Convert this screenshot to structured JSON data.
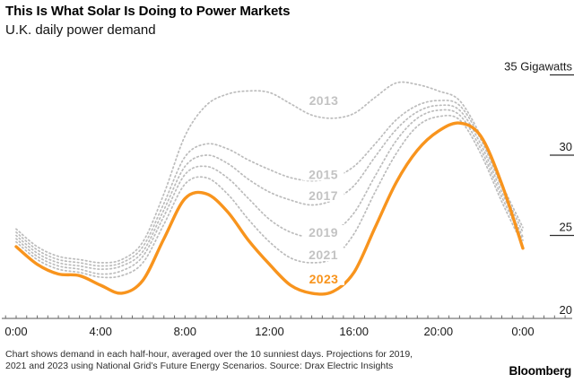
{
  "header": {
    "title": "This Is What Solar Is Doing to Power Markets",
    "subtitle": "U.K. daily power demand"
  },
  "chart_data": {
    "type": "line",
    "title": "This Is What Solar Is Doing to Power Markets",
    "subtitle": "U.K. daily power demand",
    "xlabel": "",
    "ylabel": "Gigawatts",
    "xlim_hours": [
      0,
      24
    ],
    "ylim": [
      19.6,
      35.6
    ],
    "grid": false,
    "legend_position": "inline-labels-on-lines",
    "x_ticks": [
      {
        "hour": 0,
        "label": "0:00"
      },
      {
        "hour": 4,
        "label": "4:00"
      },
      {
        "hour": 8,
        "label": "8:00"
      },
      {
        "hour": 12,
        "label": "12:00"
      },
      {
        "hour": 16,
        "label": "16:00"
      },
      {
        "hour": 20,
        "label": "20:00"
      },
      {
        "hour": 24,
        "label": "0:00"
      }
    ],
    "minor_tick_interval_hours": 0.5,
    "y_ticks": [
      {
        "value": 35,
        "label": "35 Gigawatts"
      },
      {
        "value": 30,
        "label": "30"
      },
      {
        "value": 25,
        "label": "25"
      },
      {
        "value": 20,
        "label": "20"
      }
    ],
    "hours": [
      0,
      1,
      2,
      3,
      4,
      5,
      6,
      7,
      8,
      9,
      10,
      11,
      12,
      13,
      14,
      15,
      16,
      17,
      18,
      19,
      20,
      21,
      22,
      23,
      24
    ],
    "series": [
      {
        "name": "2013",
        "style": "dotted",
        "color": "#bcbcbc",
        "label_color": "#c3c3c3",
        "label_anchor": {
          "hour": 14.57,
          "gw": 33.4
        },
        "values": [
          25.4,
          24.3,
          23.7,
          23.5,
          23.3,
          23.5,
          24.6,
          27.6,
          31.2,
          33.1,
          33.8,
          34.0,
          33.9,
          33.2,
          32.5,
          32.3,
          32.6,
          33.6,
          34.5,
          34.4,
          34.0,
          33.4,
          31.2,
          28.2,
          25.5
        ]
      },
      {
        "name": "2015",
        "style": "dotted",
        "color": "#bcbcbc",
        "label_color": "#c3c3c3",
        "label_anchor": {
          "hour": 14.55,
          "gw": 28.8
        },
        "values": [
          25.2,
          24.1,
          23.5,
          23.3,
          23.1,
          23.3,
          24.3,
          27.0,
          29.9,
          30.7,
          30.4,
          29.7,
          29.1,
          28.6,
          28.4,
          28.6,
          29.3,
          30.7,
          32.2,
          33.1,
          33.4,
          33.1,
          31.0,
          28.0,
          25.2
        ]
      },
      {
        "name": "2017",
        "style": "dotted",
        "color": "#bcbcbc",
        "label_color": "#c3c3c3",
        "label_anchor": {
          "hour": 14.55,
          "gw": 27.5
        },
        "values": [
          25.0,
          23.9,
          23.3,
          23.1,
          22.9,
          23.1,
          24.0,
          26.6,
          29.3,
          30.0,
          29.5,
          28.5,
          27.7,
          27.2,
          26.9,
          27.2,
          28.1,
          29.9,
          31.6,
          32.7,
          33.1,
          32.8,
          30.7,
          27.7,
          24.9
        ]
      },
      {
        "name": "2019",
        "style": "dotted",
        "color": "#bcbcbc",
        "label_color": "#c3c3c3",
        "label_anchor": {
          "hour": 14.55,
          "gw": 25.2
        },
        "values": [
          24.8,
          23.7,
          23.1,
          22.9,
          22.6,
          22.8,
          23.7,
          26.2,
          28.8,
          29.3,
          28.6,
          27.3,
          26.0,
          25.2,
          24.9,
          25.2,
          26.4,
          28.7,
          30.9,
          32.3,
          32.8,
          32.5,
          30.4,
          27.4,
          24.7
        ]
      },
      {
        "name": "2021",
        "style": "dotted",
        "color": "#bcbcbc",
        "label_color": "#c3c3c3",
        "label_anchor": {
          "hour": 14.55,
          "gw": 23.8
        },
        "values": [
          24.6,
          23.5,
          22.9,
          22.7,
          22.4,
          22.5,
          23.3,
          25.7,
          28.2,
          28.6,
          27.6,
          26.0,
          24.6,
          23.6,
          23.3,
          23.6,
          25.1,
          27.7,
          30.1,
          31.8,
          32.4,
          32.2,
          30.1,
          27.1,
          24.4
        ]
      },
      {
        "name": "2023",
        "style": "solid",
        "color": "#f8941d",
        "label_color": "#f8941d",
        "label_anchor": {
          "hour": 14.57,
          "gw": 22.3
        },
        "values": [
          24.3,
          23.2,
          22.6,
          22.5,
          21.9,
          21.4,
          22.2,
          24.8,
          27.3,
          27.6,
          26.5,
          24.7,
          23.2,
          21.9,
          21.4,
          21.5,
          22.7,
          25.5,
          28.3,
          30.3,
          31.5,
          32.0,
          31.2,
          28.2,
          24.2
        ]
      }
    ]
  },
  "footer": {
    "note_lines": [
      "Chart shows demand in each half-hour, averaged over the 10 sunniest days. Projections for 2019,",
      "2021 and 2023 using National Grid’s Future Energy Scenarios. Source: Drax Electric Insights"
    ],
    "brand": "Bloomberg"
  },
  "colors": {
    "accent_orange": "#f8941d",
    "projection_gray": "#bcbcbc",
    "label_gray": "#c3c3c3",
    "axis_gray": "#8f8f8f",
    "tick_dark": "#2e2e2e",
    "text_black": "#000000",
    "background": "#ffffff"
  }
}
